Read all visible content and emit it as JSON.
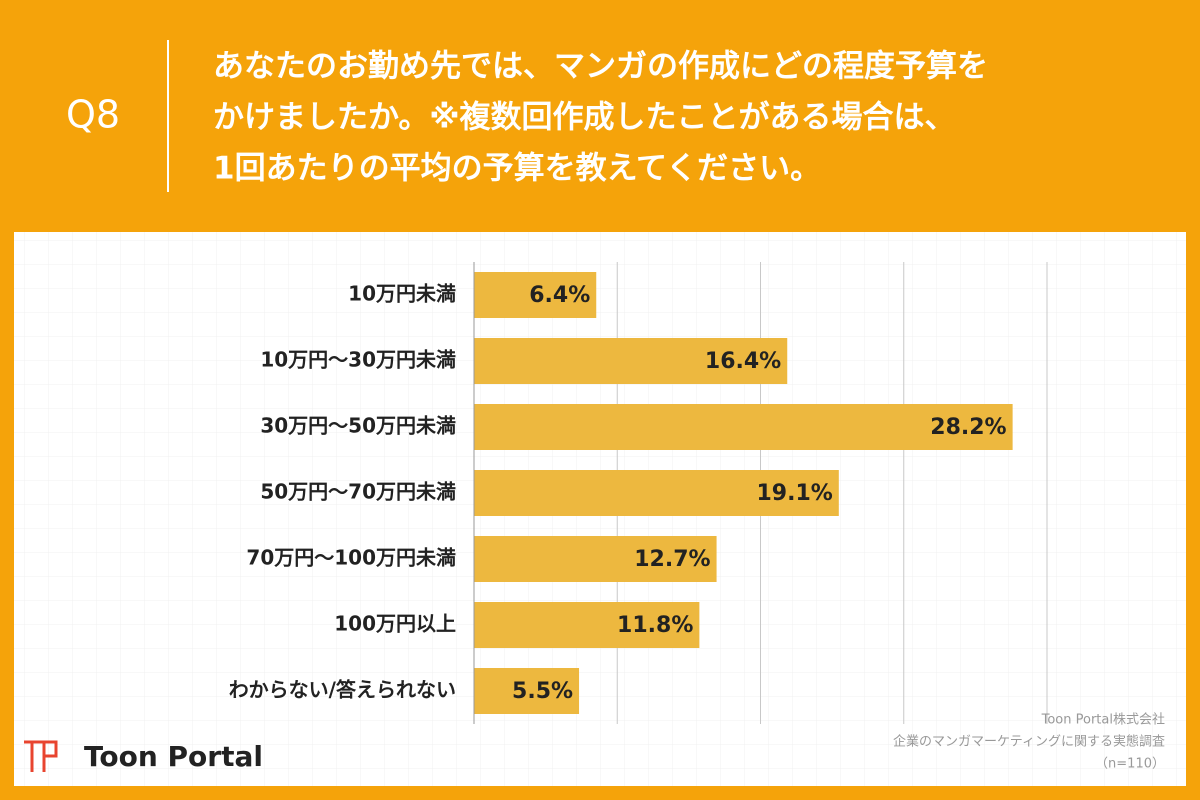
{
  "chart_data": {
    "type": "bar",
    "question_number": "Q8",
    "title": [
      "あなたのお勤め先では、マンガの作成にどの程度予算を",
      "かけましたか。※複数回作成したことがある場合は、",
      "1回あたりの平均の予算を教えてください。"
    ],
    "categories": [
      "10万円未満",
      "10万円〜30万円未満",
      "30万円〜50万円未満",
      "50万円〜70万円未満",
      "70万円〜100万円未満",
      "100万円以上",
      "わからない/答えられない"
    ],
    "values": [
      6.4,
      16.4,
      28.2,
      19.1,
      12.7,
      11.8,
      5.5
    ],
    "value_labels": [
      "6.4%",
      "16.4%",
      "28.2%",
      "19.1%",
      "12.7%",
      "11.8%",
      "5.5%"
    ],
    "color": "#edb83f",
    "xlim": [
      0,
      30
    ],
    "xticks": [
      0,
      7.5,
      15,
      22.5,
      30
    ],
    "grid": true,
    "source": [
      "Toon Portal株式会社",
      "企業のマンガマーケティングに関する実態調査",
      "（n=110）"
    ],
    "logo": "Toon Portal"
  }
}
